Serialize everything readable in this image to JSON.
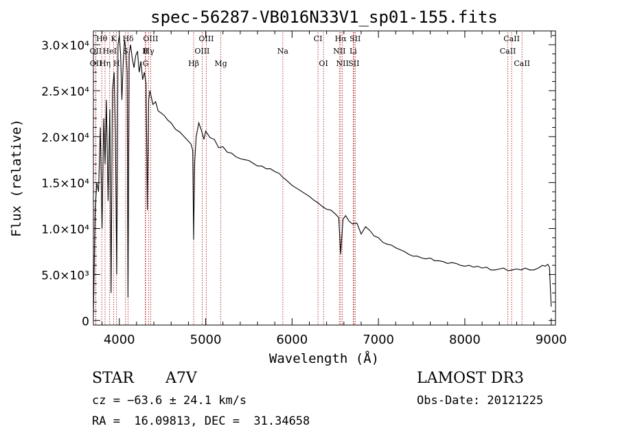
{
  "chart_data": {
    "type": "line",
    "title": "spec-56287-VB016N33V1_sp01-155.fits",
    "xlabel": "Wavelength (Å)",
    "ylabel": "Flux (relative)",
    "xlim": [
      3700,
      9050
    ],
    "ylim": [
      -500,
      31500
    ],
    "x_ticks": [
      4000,
      5000,
      6000,
      7000,
      8000,
      9000
    ],
    "x_tick_labels": [
      "4000",
      "5000",
      "6000",
      "7000",
      "8000",
      "9000"
    ],
    "y_ticks": [
      0,
      5000,
      10000,
      15000,
      20000,
      25000,
      30000
    ],
    "y_tick_labels": [
      "0",
      "5.0×10³",
      "1.0×10⁴",
      "1.5×10⁴",
      "2.0×10⁴",
      "2.5×10⁴",
      "3.0×10⁴"
    ],
    "series": [
      {
        "name": "flux",
        "x": [
          3700,
          3720,
          3740,
          3760,
          3780,
          3800,
          3820,
          3835,
          3850,
          3870,
          3890,
          3905,
          3920,
          3940,
          3955,
          3970,
          3985,
          4000,
          4015,
          4030,
          4045,
          4060,
          4075,
          4090,
          4101,
          4115,
          4130,
          4150,
          4170,
          4190,
          4210,
          4230,
          4250,
          4270,
          4290,
          4310,
          4325,
          4340,
          4355,
          4370,
          4390,
          4420,
          4450,
          4480,
          4520,
          4560,
          4600,
          4650,
          4700,
          4750,
          4800,
          4830,
          4850,
          4861,
          4872,
          4890,
          4920,
          4950,
          4980,
          5000,
          5050,
          5100,
          5150,
          5200,
          5250,
          5300,
          5350,
          5400,
          5450,
          5500,
          5550,
          5600,
          5650,
          5700,
          5750,
          5800,
          5850,
          5890,
          5930,
          6000,
          6050,
          6100,
          6150,
          6200,
          6250,
          6300,
          6350,
          6400,
          6450,
          6500,
          6540,
          6563,
          6590,
          6620,
          6660,
          6700,
          6750,
          6800,
          6850,
          6900,
          6950,
          7000,
          7050,
          7100,
          7150,
          7200,
          7250,
          7300,
          7350,
          7400,
          7450,
          7500,
          7550,
          7600,
          7650,
          7700,
          7750,
          7800,
          7850,
          7900,
          7950,
          8000,
          8050,
          8100,
          8150,
          8200,
          8250,
          8300,
          8350,
          8400,
          8450,
          8500,
          8550,
          8600,
          8650,
          8700,
          8750,
          8800,
          8850,
          8900,
          8930,
          8960,
          8980,
          9000
        ],
        "y": [
          300,
          12000,
          15000,
          14000,
          21000,
          10000,
          22000,
          17000,
          24000,
          13000,
          23000,
          3000,
          25000,
          27000,
          20000,
          5000,
          30000,
          31000,
          29000,
          24000,
          28000,
          30500,
          29500,
          27000,
          2500,
          29000,
          30000,
          28500,
          27500,
          28800,
          29300,
          27000,
          28200,
          26200,
          27000,
          25800,
          12000,
          24000,
          25000,
          24300,
          23500,
          23800,
          22800,
          22600,
          22300,
          21800,
          21500,
          20800,
          20500,
          20000,
          19500,
          19200,
          18500,
          8800,
          17000,
          20000,
          21500,
          20700,
          19700,
          20600,
          19900,
          19700,
          18800,
          18900,
          18300,
          18200,
          17800,
          17600,
          17500,
          17400,
          17100,
          16800,
          16800,
          16500,
          16500,
          16200,
          16000,
          15600,
          15300,
          14700,
          14400,
          14100,
          13800,
          13500,
          13100,
          12800,
          12400,
          12100,
          12000,
          11600,
          11200,
          7200,
          11000,
          11400,
          10800,
          10500,
          10600,
          9400,
          10200,
          9800,
          9200,
          9000,
          8500,
          8300,
          8200,
          7900,
          7700,
          7500,
          7200,
          7000,
          7000,
          6800,
          6700,
          6800,
          6500,
          6500,
          6400,
          6200,
          6300,
          6200,
          6000,
          5900,
          6000,
          5800,
          5900,
          5700,
          5800,
          5500,
          5500,
          5600,
          5700,
          5400,
          5500,
          5600,
          5500,
          5700,
          5500,
          5500,
          5700,
          6000,
          5900,
          6100,
          5800,
          1500
        ]
      }
    ],
    "absorption_lines": [
      {
        "name": "O III",
        "wavelength": 4959
      },
      {
        "name": "Hβ",
        "wavelength": 4861
      },
      {
        "name": "Mg",
        "wavelength": 5175
      }
    ],
    "line_markers": [
      {
        "label": "Hθ",
        "wavelength": 3797,
        "row": 1
      },
      {
        "label": "K",
        "wavelength": 3934,
        "row": 1
      },
      {
        "label": "Hδ",
        "wavelength": 4102,
        "row": 1
      },
      {
        "label": "OIII",
        "wavelength": 4363,
        "row": 1
      },
      {
        "label": "OIII",
        "wavelength": 5007,
        "row": 1
      },
      {
        "label": "CI",
        "wavelength": 6300,
        "row": 1
      },
      {
        "label": "Hα",
        "wavelength": 6563,
        "row": 1
      },
      {
        "label": "SII",
        "wavelength": 6731,
        "row": 1
      },
      {
        "label": "CaII",
        "wavelength": 8542,
        "row": 1
      },
      {
        "label": "OII",
        "wavelength": 3727,
        "row": 2
      },
      {
        "label": "HeI",
        "wavelength": 3889,
        "row": 2
      },
      {
        "label": "S",
        "wavelength": 4072,
        "row": 2
      },
      {
        "label": "II",
        "wavelength": 4300,
        "row": 2
      },
      {
        "label": "Hγ",
        "wavelength": 4340,
        "row": 2
      },
      {
        "label": "OIII",
        "wavelength": 4959,
        "row": 2
      },
      {
        "label": "Na",
        "wavelength": 5893,
        "row": 2
      },
      {
        "label": "NII",
        "wavelength": 6548,
        "row": 2
      },
      {
        "label": "Li",
        "wavelength": 6708,
        "row": 2
      },
      {
        "label": "CaII",
        "wavelength": 8498,
        "row": 2
      },
      {
        "label": "OII",
        "wavelength": 3729,
        "row": 3
      },
      {
        "label": "Hη",
        "wavelength": 3835,
        "row": 3
      },
      {
        "label": "H",
        "wavelength": 3968,
        "row": 3
      },
      {
        "label": "G",
        "wavelength": 4305,
        "row": 3
      },
      {
        "label": "Hβ",
        "wavelength": 4861,
        "row": 3
      },
      {
        "label": "Mg",
        "wavelength": 5175,
        "row": 3
      },
      {
        "label": "OI",
        "wavelength": 6364,
        "row": 3
      },
      {
        "label": "NII",
        "wavelength": 6583,
        "row": 3
      },
      {
        "label": "SII",
        "wavelength": 6716,
        "row": 3
      },
      {
        "label": "CaII",
        "wavelength": 8662,
        "row": 3
      }
    ]
  },
  "info": {
    "object_type": "STAR",
    "subclass": "A7V",
    "redshift": "cz = −63.6 ± 24.1 km/s",
    "coords": "RA =  16.09813, DEC =  31.34658",
    "survey": "LAMOST DR3",
    "obs_date": "Obs-Date: 20121225"
  },
  "colors": {
    "spectrum": "#000000",
    "line_markers": "#aa0000",
    "background": "#ffffff"
  }
}
